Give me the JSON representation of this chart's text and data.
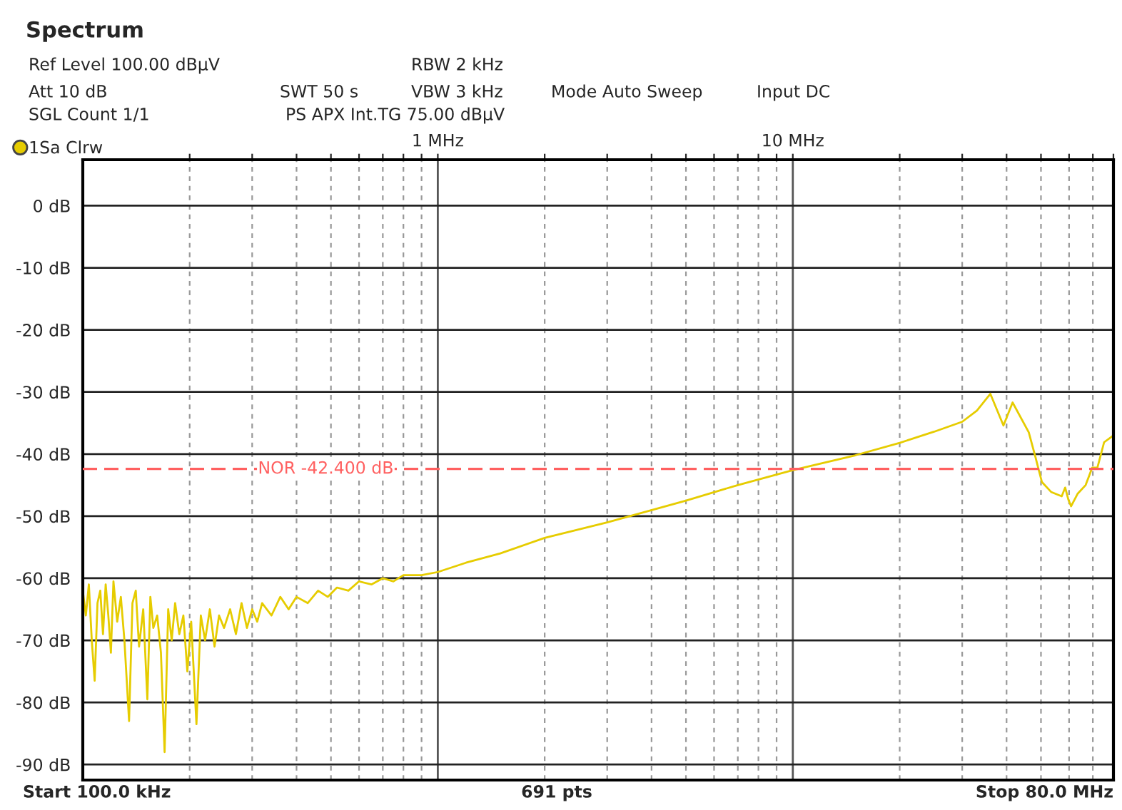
{
  "chart_data": {
    "type": "line",
    "title": "Spectrum",
    "annotations": [
      "Ref Level 100.00 dBµV",
      "Att 10 dB",
      "SWT 50 s",
      "RBW 2 kHz",
      "VBW 3 kHz",
      "Mode Auto Sweep",
      "Input DC",
      "SGL Count 1/1",
      "PS APX Int.TG 75.00 dBµV",
      "Start 100.0 kHz",
      "691 pts",
      "Stop 80.0 MHz"
    ],
    "log": "x",
    "grid": true,
    "legend": "top left",
    "marker": "none",
    "line_style": "solid",
    "xlim": [
      0.1,
      80
    ],
    "ylim": [
      -92.5,
      7.4
    ],
    "xticks": [
      {
        "value": 0.2,
        "label": null
      },
      {
        "value": 0.3,
        "label": null
      },
      {
        "value": 0.4,
        "label": null
      },
      {
        "value": 0.5,
        "label": null
      },
      {
        "value": 0.6,
        "label": null
      },
      {
        "value": 0.7,
        "label": null
      },
      {
        "value": 0.8,
        "label": null
      },
      {
        "value": 0.9,
        "label": null
      },
      {
        "value": 1,
        "label": "1 MHz"
      },
      {
        "value": 2,
        "label": null
      },
      {
        "value": 3,
        "label": null
      },
      {
        "value": 4,
        "label": null
      },
      {
        "value": 5,
        "label": null
      },
      {
        "value": 6,
        "label": null
      },
      {
        "value": 7,
        "label": null
      },
      {
        "value": 8,
        "label": null
      },
      {
        "value": 9,
        "label": null
      },
      {
        "value": 10,
        "label": "10 MHz"
      },
      {
        "value": 20,
        "label": null
      },
      {
        "value": 30,
        "label": null
      },
      {
        "value": 40,
        "label": null
      },
      {
        "value": 50,
        "label": null
      },
      {
        "value": 60,
        "label": null
      },
      {
        "value": 70,
        "label": null
      },
      {
        "value": 80,
        "label": null
      }
    ],
    "yticks": [
      {
        "value": 0,
        "label": "0 dB"
      },
      {
        "value": -10,
        "label": "-10 dB"
      },
      {
        "value": -20,
        "label": "-20 dB"
      },
      {
        "value": -30,
        "label": "-30 dB"
      },
      {
        "value": -40,
        "label": "-40 dB"
      },
      {
        "value": -50,
        "label": "-50 dB"
      },
      {
        "value": -60,
        "label": "-60 dB"
      },
      {
        "value": -70,
        "label": "-70 dB"
      },
      {
        "value": -80,
        "label": "-80 dB"
      },
      {
        "value": -90,
        "label": "-90 dB"
      }
    ],
    "ref_lines": [
      {
        "axis": "y",
        "value": -42.4,
        "label": "NOR -42.400 dB",
        "color": "#ff6060",
        "line_style": "dashed"
      }
    ],
    "series": [
      {
        "name": "1Sa Clrw",
        "color": "#e6cc00",
        "x": [
          0.1,
          0.102,
          0.104,
          0.106,
          0.108,
          0.11,
          0.112,
          0.114,
          0.116,
          0.118,
          0.12,
          0.122,
          0.125,
          0.128,
          0.131,
          0.135,
          0.138,
          0.141,
          0.144,
          0.148,
          0.152,
          0.155,
          0.158,
          0.162,
          0.166,
          0.17,
          0.174,
          0.178,
          0.182,
          0.187,
          0.192,
          0.197,
          0.202,
          0.209,
          0.215,
          0.221,
          0.228,
          0.235,
          0.242,
          0.25,
          0.26,
          0.27,
          0.28,
          0.29,
          0.3,
          0.31,
          0.32,
          0.34,
          0.36,
          0.38,
          0.4,
          0.43,
          0.46,
          0.49,
          0.52,
          0.56,
          0.6,
          0.65,
          0.7,
          0.75,
          0.8,
          0.9,
          1.0,
          1.2,
          1.5,
          2,
          3,
          5,
          7,
          10,
          15,
          20,
          25,
          30,
          33,
          36,
          39.2,
          41.6,
          46.2,
          48.2,
          50.3,
          53.4,
          57.2,
          58.5,
          59.7,
          60.8,
          63.4,
          66.8,
          69.7,
          72.1,
          75.3,
          80
        ],
        "values": [
          -62,
          -66,
          -61,
          -70,
          -76.5,
          -64,
          -62,
          -69,
          -61,
          -66,
          -72,
          -60.5,
          -67,
          -63,
          -70,
          -83,
          -64,
          -62,
          -71,
          -65,
          -79.5,
          -63,
          -68,
          -66,
          -72,
          -88,
          -65,
          -70,
          -64,
          -69,
          -66,
          -75,
          -67,
          -83.5,
          -66,
          -70,
          -65,
          -71,
          -66,
          -68,
          -65,
          -69,
          -64,
          -68,
          -65,
          -67,
          -64,
          -66,
          -63,
          -65,
          -63,
          -64,
          -62,
          -63,
          -61.5,
          -62,
          -60.5,
          -61,
          -60,
          -60.5,
          -59.5,
          -59.5,
          -59,
          -57.5,
          -56,
          -53.5,
          -51,
          -47.5,
          -45,
          -42.6,
          -40.2,
          -38.2,
          -36.4,
          -34.8,
          -33,
          -30.3,
          -35.4,
          -31.7,
          -36.5,
          -40.4,
          -44.5,
          -46.1,
          -46.8,
          -45.4,
          -47.3,
          -48.4,
          -46.4,
          -45,
          -42.2,
          -42.2,
          -38.1,
          -37
        ]
      }
    ]
  }
}
